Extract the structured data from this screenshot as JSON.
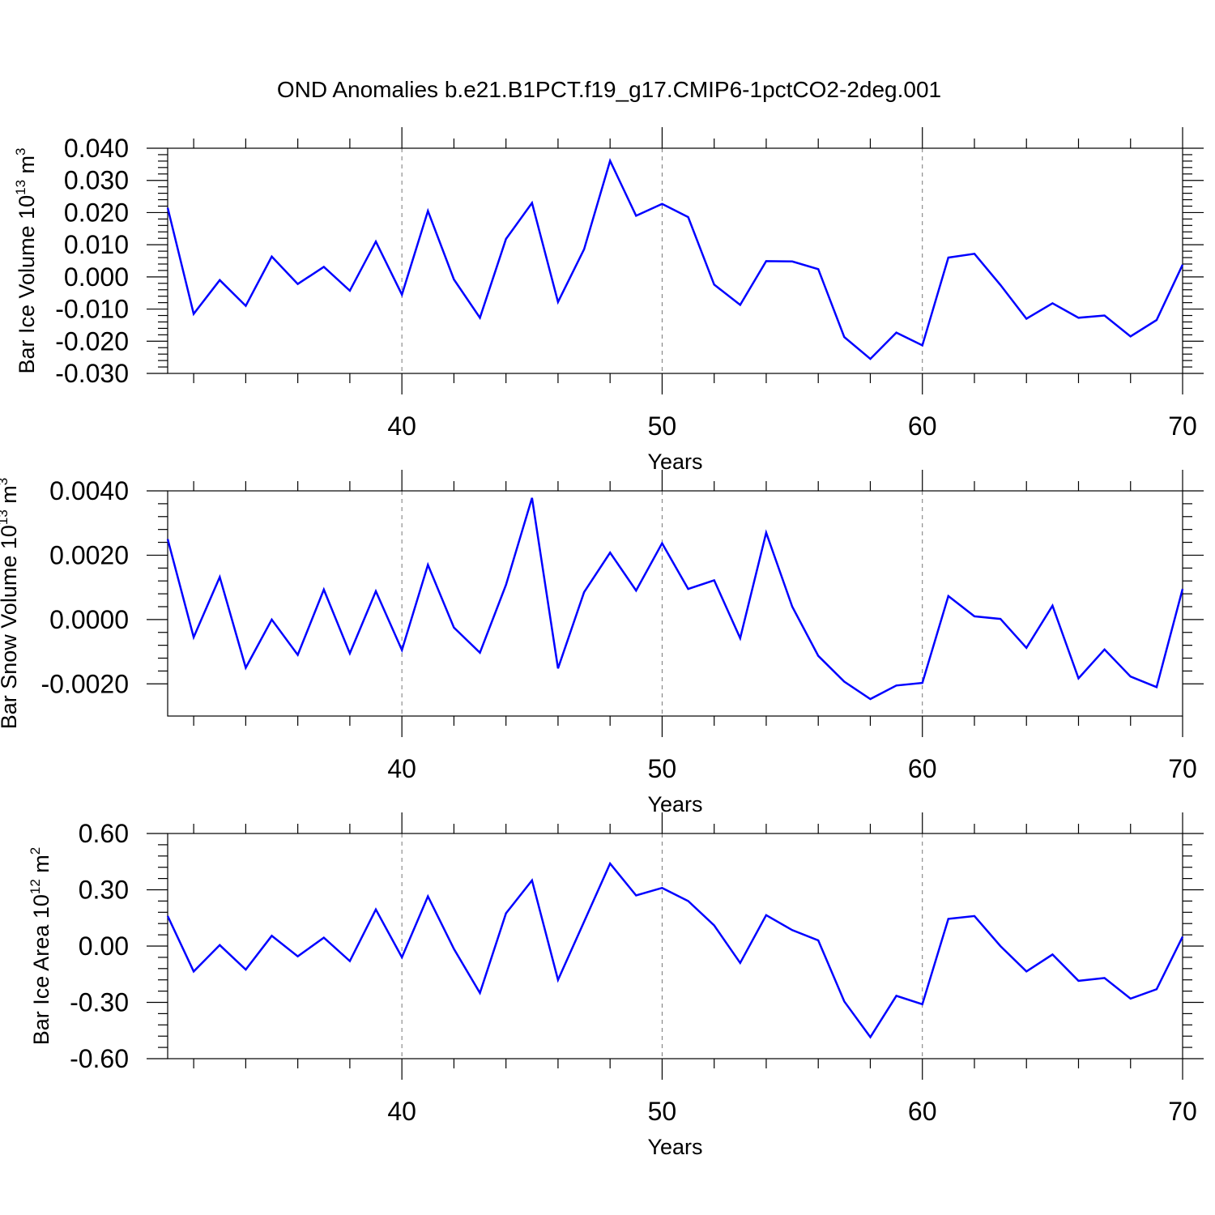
{
  "title": "OND Anomalies b.e21.B1PCT.f19_g17.CMIP6-1pctCO2-2deg.001",
  "colors": {
    "series": "#0000ff",
    "grid": "#777777",
    "axis": "#000000"
  },
  "chart_data": [
    {
      "type": "line",
      "ylabel": {
        "text": "Bar Ice Volume 10",
        "sup": "13",
        "unit": " m",
        "unit_sup": "3"
      },
      "xlabel": "Years",
      "xlim": [
        31,
        70
      ],
      "ylim": [
        -0.03,
        0.04
      ],
      "xticks": [
        40,
        50,
        60,
        70
      ],
      "yticks": [
        -0.03,
        -0.02,
        -0.01,
        0.0,
        0.01,
        0.02,
        0.03,
        0.04
      ],
      "ytick_labels": [
        "-0.030",
        "-0.020",
        "-0.010",
        "0.000",
        "0.010",
        "0.020",
        "0.030",
        "0.040"
      ],
      "grid_x": [
        40,
        50,
        60
      ],
      "x": [
        31,
        32,
        33,
        34,
        35,
        36,
        37,
        38,
        39,
        40,
        41,
        42,
        43,
        44,
        45,
        46,
        47,
        48,
        49,
        50,
        51,
        52,
        53,
        54,
        55,
        56,
        57,
        58,
        59,
        60,
        61,
        62,
        63,
        64,
        65,
        66,
        67,
        68,
        69,
        70
      ],
      "series": [
        {
          "values": [
            0.0215,
            -0.0115,
            -0.001,
            -0.009,
            0.0063,
            -0.0022,
            0.0031,
            -0.0043,
            0.011,
            -0.0055,
            0.0205,
            -0.0008,
            -0.0127,
            0.0118,
            0.023,
            -0.0078,
            0.0086,
            0.0361,
            0.019,
            0.0227,
            0.0186,
            -0.0024,
            -0.0087,
            0.0049,
            0.0048,
            0.0024,
            -0.0187,
            -0.0255,
            -0.0173,
            -0.0213,
            0.006,
            0.0072,
            -0.0025,
            -0.013,
            -0.0082,
            -0.0127,
            -0.012,
            -0.0185,
            -0.0134,
            0.0038
          ]
        }
      ]
    },
    {
      "type": "line",
      "ylabel": {
        "text": "Bar Snow Volume 10",
        "sup": "13",
        "unit": " m",
        "unit_sup": "3"
      },
      "xlabel": "Years",
      "xlim": [
        31,
        70
      ],
      "ylim": [
        -0.003,
        0.004
      ],
      "xticks": [
        40,
        50,
        60,
        70
      ],
      "yticks": [
        -0.002,
        0.0,
        0.002,
        0.004
      ],
      "ytick_labels": [
        "-0.0020",
        "0.0000",
        "0.0020",
        "0.0040"
      ],
      "grid_x": [
        40,
        50,
        60
      ],
      "x": [
        31,
        32,
        33,
        34,
        35,
        36,
        37,
        38,
        39,
        40,
        41,
        42,
        43,
        44,
        45,
        46,
        47,
        48,
        49,
        50,
        51,
        52,
        53,
        54,
        55,
        56,
        57,
        58,
        59,
        60,
        61,
        62,
        63,
        64,
        65,
        66,
        67,
        68,
        69,
        70
      ],
      "series": [
        {
          "values": [
            0.0025,
            -0.00055,
            0.00132,
            -0.0015,
            0.0,
            -0.0011,
            0.00093,
            -0.00105,
            0.00088,
            -0.00095,
            0.0017,
            -0.00025,
            -0.00103,
            0.00108,
            0.00378,
            -0.00152,
            0.00085,
            0.00208,
            0.0009,
            0.00237,
            0.00095,
            0.00122,
            -0.00058,
            0.0027,
            0.0004,
            -0.00113,
            -0.00193,
            -0.00247,
            -0.00205,
            -0.00197,
            0.00073,
            0.0001,
            2e-05,
            -0.00088,
            0.00043,
            -0.00183,
            -0.00093,
            -0.00177,
            -0.0021,
            0.00095
          ]
        }
      ]
    },
    {
      "type": "line",
      "ylabel": {
        "text": "Bar Ice Area 10",
        "sup": "12",
        "unit": " m",
        "unit_sup": "2"
      },
      "xlabel": "Years",
      "xlim": [
        31,
        70
      ],
      "ylim": [
        -0.6,
        0.6
      ],
      "xticks": [
        40,
        50,
        60,
        70
      ],
      "yticks": [
        -0.6,
        -0.3,
        0.0,
        0.3,
        0.6
      ],
      "ytick_labels": [
        "-0.60",
        "-0.30",
        "0.00",
        "0.30",
        "0.60"
      ],
      "grid_x": [
        40,
        50,
        60
      ],
      "x": [
        31,
        32,
        33,
        34,
        35,
        36,
        37,
        38,
        39,
        40,
        41,
        42,
        43,
        44,
        45,
        46,
        47,
        48,
        49,
        50,
        51,
        52,
        53,
        54,
        55,
        56,
        57,
        58,
        59,
        60,
        61,
        62,
        63,
        64,
        65,
        66,
        67,
        68,
        69,
        70
      ],
      "series": [
        {
          "values": [
            0.16,
            -0.135,
            0.005,
            -0.125,
            0.055,
            -0.055,
            0.045,
            -0.08,
            0.195,
            -0.06,
            0.265,
            -0.015,
            -0.25,
            0.175,
            0.35,
            -0.18,
            0.13,
            0.44,
            0.27,
            0.31,
            0.24,
            0.11,
            -0.09,
            0.165,
            0.085,
            0.03,
            -0.295,
            -0.485,
            -0.265,
            -0.31,
            0.145,
            0.16,
            0.0,
            -0.135,
            -0.045,
            -0.185,
            -0.17,
            -0.28,
            -0.23,
            0.05
          ]
        }
      ]
    }
  ]
}
